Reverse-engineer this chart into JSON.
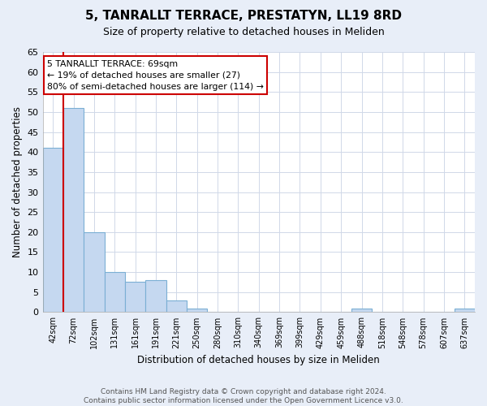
{
  "title": "5, TANRALLT TERRACE, PRESTATYN, LL19 8RD",
  "subtitle": "Size of property relative to detached houses in Meliden",
  "xlabel": "Distribution of detached houses by size in Meliden",
  "ylabel": "Number of detached properties",
  "categories": [
    "42sqm",
    "72sqm",
    "102sqm",
    "131sqm",
    "161sqm",
    "191sqm",
    "221sqm",
    "250sqm",
    "280sqm",
    "310sqm",
    "340sqm",
    "369sqm",
    "399sqm",
    "429sqm",
    "459sqm",
    "488sqm",
    "518sqm",
    "548sqm",
    "578sqm",
    "607sqm",
    "637sqm"
  ],
  "values": [
    41,
    51,
    20,
    10,
    7.5,
    8,
    3,
    1,
    0,
    0,
    0,
    0,
    0,
    0,
    0,
    1,
    0,
    0,
    0,
    0,
    1
  ],
  "bar_color": "#c5d8f0",
  "bar_edge_color": "#7bafd4",
  "ylim": [
    0,
    65
  ],
  "yticks": [
    0,
    5,
    10,
    15,
    20,
    25,
    30,
    35,
    40,
    45,
    50,
    55,
    60,
    65
  ],
  "property_line_x": 0.5,
  "property_line_color": "#cc0000",
  "annotation_text": "5 TANRALLT TERRACE: 69sqm\n← 19% of detached houses are smaller (27)\n80% of semi-detached houses are larger (114) →",
  "annotation_box_color": "#ffffff",
  "annotation_box_edge": "#cc0000",
  "footer_text": "Contains HM Land Registry data © Crown copyright and database right 2024.\nContains public sector information licensed under the Open Government Licence v3.0.",
  "figure_bg_color": "#e8eef8",
  "plot_bg_color": "#ffffff",
  "grid_color": "#d0d8e8"
}
